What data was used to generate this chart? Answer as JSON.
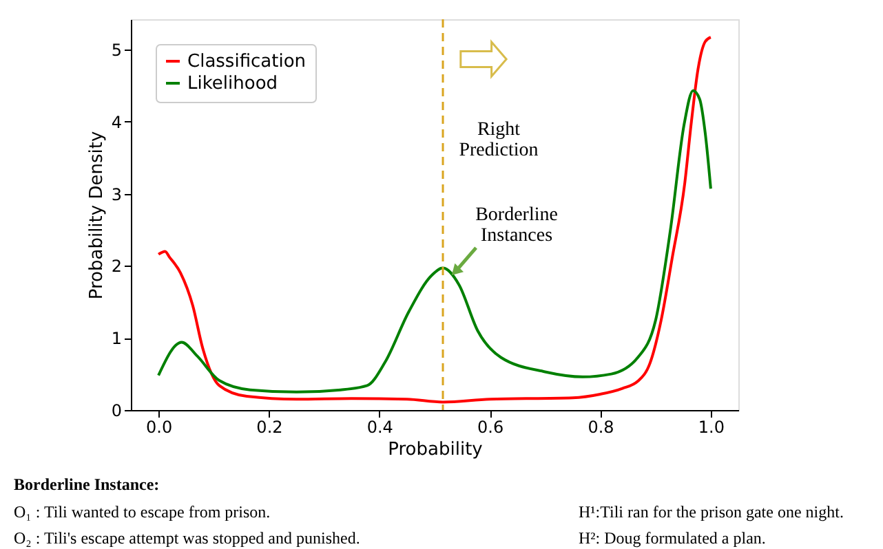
{
  "chart_data": {
    "type": "line",
    "xlabel": "Probability",
    "ylabel": "Probability Density",
    "series": [
      {
        "name": "Classification",
        "color": "#ff0000",
        "x": [
          0,
          0.012,
          0.02,
          0.04,
          0.062,
          0.08,
          0.11,
          0.16,
          0.25,
          0.35,
          0.45,
          0.515,
          0.6,
          0.75,
          0.8,
          0.84,
          0.868,
          0.89,
          0.91,
          0.93,
          0.953,
          0.965,
          0.977,
          0.99,
          1.0
        ],
        "values": [
          2.16,
          2.2,
          2.12,
          1.9,
          1.45,
          0.86,
          0.34,
          0.19,
          0.15,
          0.16,
          0.15,
          0.11,
          0.15,
          0.17,
          0.22,
          0.3,
          0.4,
          0.65,
          1.24,
          2.1,
          3.15,
          4.0,
          4.73,
          5.11,
          5.17
        ]
      },
      {
        "name": "Likelihood",
        "color": "#008000",
        "x": [
          0,
          0.042,
          0.07,
          0.11,
          0.166,
          0.25,
          0.33,
          0.378,
          0.41,
          0.453,
          0.495,
          0.515,
          0.544,
          0.578,
          0.62,
          0.7,
          0.768,
          0.82,
          0.868,
          0.9,
          0.927,
          0.952,
          0.968,
          0.98,
          0.99,
          1.0
        ],
        "values": [
          0.48,
          0.94,
          0.75,
          0.41,
          0.28,
          0.25,
          0.28,
          0.34,
          0.66,
          1.36,
          1.87,
          1.97,
          1.74,
          1.1,
          0.73,
          0.53,
          0.46,
          0.5,
          0.73,
          1.24,
          2.5,
          3.97,
          4.43,
          4.31,
          3.84,
          3.07
        ]
      }
    ],
    "xlim": [
      -0.05,
      1.05
    ],
    "ylim": [
      0,
      5.42
    ],
    "xticks": [
      {
        "value": 0,
        "label": "0.0"
      },
      {
        "value": 0.2,
        "label": "0.2"
      },
      {
        "value": 0.4,
        "label": "0.4"
      },
      {
        "value": 0.6,
        "label": "0.6"
      },
      {
        "value": 0.8,
        "label": "0.8"
      },
      {
        "value": 1,
        "label": "1.0"
      }
    ],
    "yticks": [
      0,
      1,
      2,
      3,
      4,
      5
    ],
    "ref_lines": [
      {
        "axis": "x",
        "value": 0.515,
        "color": "#daa520",
        "line_style": "dashed"
      }
    ],
    "annotations": [
      "Right Prediction",
      {
        "text": "Borderline Instances",
        "x": 0.515,
        "y": 1.97
      },
      "Borderline Instance:",
      "O₁ : Tili wanted to escape from prison.",
      "O₂ : Tili's escape attempt was stopped and punished.",
      "H¹:Tili ran for the prison gate one night.",
      "H²: Doug formulated a plan."
    ],
    "legend": "top left",
    "grid": false,
    "line_style": "solid",
    "marker": "none"
  }
}
